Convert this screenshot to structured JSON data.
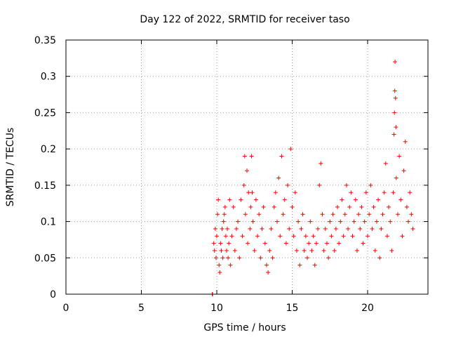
{
  "chart_data": {
    "type": "scatter",
    "title": "Day 122 of 2022, SRMTID for receiver taso",
    "xlabel": "GPS time / hours",
    "ylabel": "SRMTID / TECUs",
    "xlim": [
      0,
      24
    ],
    "ylim": [
      0,
      0.35
    ],
    "xticks": [
      0,
      5,
      10,
      15,
      20
    ],
    "xtick_labels": [
      "0",
      "5",
      "10",
      "15",
      "20"
    ],
    "yticks": [
      0,
      0.05,
      0.1,
      0.15,
      0.2,
      0.25,
      0.3,
      0.35
    ],
    "ytick_labels": [
      "0",
      "0.05",
      "0.1",
      "0.15",
      "0.2",
      "0.25",
      "0.3",
      "0.35"
    ],
    "grid": true,
    "marker": "+",
    "color": "#ff0000",
    "series": [
      {
        "name": "SRMTID",
        "points": [
          [
            9.7,
            0.0
          ],
          [
            9.72,
            0.0
          ],
          [
            9.8,
            0.07
          ],
          [
            9.85,
            0.06
          ],
          [
            9.9,
            0.09
          ],
          [
            9.95,
            0.05
          ],
          [
            10.0,
            0.08
          ],
          [
            10.05,
            0.11
          ],
          [
            10.1,
            0.13
          ],
          [
            10.15,
            0.04
          ],
          [
            10.2,
            0.03
          ],
          [
            10.25,
            0.07
          ],
          [
            10.3,
            0.06
          ],
          [
            10.35,
            0.09
          ],
          [
            10.4,
            0.05
          ],
          [
            10.45,
            0.1
          ],
          [
            10.5,
            0.11
          ],
          [
            10.55,
            0.12
          ],
          [
            10.6,
            0.08
          ],
          [
            10.65,
            0.06
          ],
          [
            10.7,
            0.09
          ],
          [
            10.75,
            0.05
          ],
          [
            10.8,
            0.07
          ],
          [
            10.85,
            0.13
          ],
          [
            10.9,
            0.04
          ],
          [
            11.0,
            0.08
          ],
          [
            11.1,
            0.12
          ],
          [
            11.2,
            0.06
          ],
          [
            11.3,
            0.09
          ],
          [
            11.4,
            0.1
          ],
          [
            11.5,
            0.05
          ],
          [
            11.6,
            0.13
          ],
          [
            11.7,
            0.08
          ],
          [
            11.8,
            0.15
          ],
          [
            11.85,
            0.19
          ],
          [
            11.9,
            0.11
          ],
          [
            12.0,
            0.17
          ],
          [
            12.05,
            0.07
          ],
          [
            12.1,
            0.14
          ],
          [
            12.2,
            0.09
          ],
          [
            12.25,
            0.12
          ],
          [
            12.3,
            0.19
          ],
          [
            12.35,
            0.14
          ],
          [
            12.4,
            0.1
          ],
          [
            12.5,
            0.06
          ],
          [
            12.6,
            0.13
          ],
          [
            12.7,
            0.08
          ],
          [
            12.8,
            0.11
          ],
          [
            12.9,
            0.05
          ],
          [
            13.0,
            0.09
          ],
          [
            13.1,
            0.12
          ],
          [
            13.2,
            0.07
          ],
          [
            13.3,
            0.04
          ],
          [
            13.4,
            0.03
          ],
          [
            13.5,
            0.06
          ],
          [
            13.6,
            0.09
          ],
          [
            13.7,
            0.05
          ],
          [
            13.8,
            0.12
          ],
          [
            13.9,
            0.14
          ],
          [
            14.0,
            0.1
          ],
          [
            14.1,
            0.16
          ],
          [
            14.2,
            0.08
          ],
          [
            14.3,
            0.19
          ],
          [
            14.4,
            0.11
          ],
          [
            14.5,
            0.13
          ],
          [
            14.6,
            0.07
          ],
          [
            14.7,
            0.15
          ],
          [
            14.8,
            0.09
          ],
          [
            14.9,
            0.2
          ],
          [
            15.0,
            0.12
          ],
          [
            15.1,
            0.08
          ],
          [
            15.2,
            0.14
          ],
          [
            15.3,
            0.06
          ],
          [
            15.4,
            0.1
          ],
          [
            15.5,
            0.04
          ],
          [
            15.6,
            0.09
          ],
          [
            15.7,
            0.11
          ],
          [
            15.8,
            0.06
          ],
          [
            15.9,
            0.08
          ],
          [
            16.0,
            0.05
          ],
          [
            16.1,
            0.07
          ],
          [
            16.2,
            0.1
          ],
          [
            16.3,
            0.06
          ],
          [
            16.4,
            0.08
          ],
          [
            16.5,
            0.04
          ],
          [
            16.6,
            0.07
          ],
          [
            16.7,
            0.09
          ],
          [
            16.8,
            0.15
          ],
          [
            16.9,
            0.18
          ],
          [
            17.0,
            0.11
          ],
          [
            17.1,
            0.06
          ],
          [
            17.2,
            0.09
          ],
          [
            17.3,
            0.07
          ],
          [
            17.4,
            0.05
          ],
          [
            17.5,
            0.1
          ],
          [
            17.6,
            0.08
          ],
          [
            17.7,
            0.11
          ],
          [
            17.8,
            0.06
          ],
          [
            17.9,
            0.09
          ],
          [
            18.0,
            0.12
          ],
          [
            18.1,
            0.07
          ],
          [
            18.2,
            0.1
          ],
          [
            18.3,
            0.13
          ],
          [
            18.4,
            0.08
          ],
          [
            18.5,
            0.11
          ],
          [
            18.6,
            0.15
          ],
          [
            18.7,
            0.09
          ],
          [
            18.8,
            0.12
          ],
          [
            18.9,
            0.14
          ],
          [
            19.0,
            0.08
          ],
          [
            19.1,
            0.1
          ],
          [
            19.2,
            0.13
          ],
          [
            19.3,
            0.06
          ],
          [
            19.4,
            0.11
          ],
          [
            19.5,
            0.09
          ],
          [
            19.6,
            0.12
          ],
          [
            19.7,
            0.07
          ],
          [
            19.8,
            0.1
          ],
          [
            19.9,
            0.14
          ],
          [
            20.0,
            0.08
          ],
          [
            20.1,
            0.11
          ],
          [
            20.2,
            0.15
          ],
          [
            20.3,
            0.09
          ],
          [
            20.4,
            0.12
          ],
          [
            20.5,
            0.06
          ],
          [
            20.6,
            0.1
          ],
          [
            20.7,
            0.13
          ],
          [
            20.8,
            0.05
          ],
          [
            20.9,
            0.09
          ],
          [
            21.0,
            0.11
          ],
          [
            21.1,
            0.14
          ],
          [
            21.2,
            0.18
          ],
          [
            21.3,
            0.08
          ],
          [
            21.4,
            0.12
          ],
          [
            21.5,
            0.1
          ],
          [
            21.6,
            0.06
          ],
          [
            21.7,
            0.14
          ],
          [
            21.75,
            0.22
          ],
          [
            21.78,
            0.25
          ],
          [
            21.8,
            0.28
          ],
          [
            21.82,
            0.32
          ],
          [
            21.85,
            0.27
          ],
          [
            21.88,
            0.23
          ],
          [
            21.9,
            0.16
          ],
          [
            22.0,
            0.11
          ],
          [
            22.1,
            0.19
          ],
          [
            22.2,
            0.13
          ],
          [
            22.3,
            0.08
          ],
          [
            22.4,
            0.17
          ],
          [
            22.5,
            0.21
          ],
          [
            22.6,
            0.12
          ],
          [
            22.7,
            0.1
          ],
          [
            22.8,
            0.14
          ],
          [
            22.9,
            0.11
          ],
          [
            23.0,
            0.09
          ]
        ]
      }
    ]
  }
}
